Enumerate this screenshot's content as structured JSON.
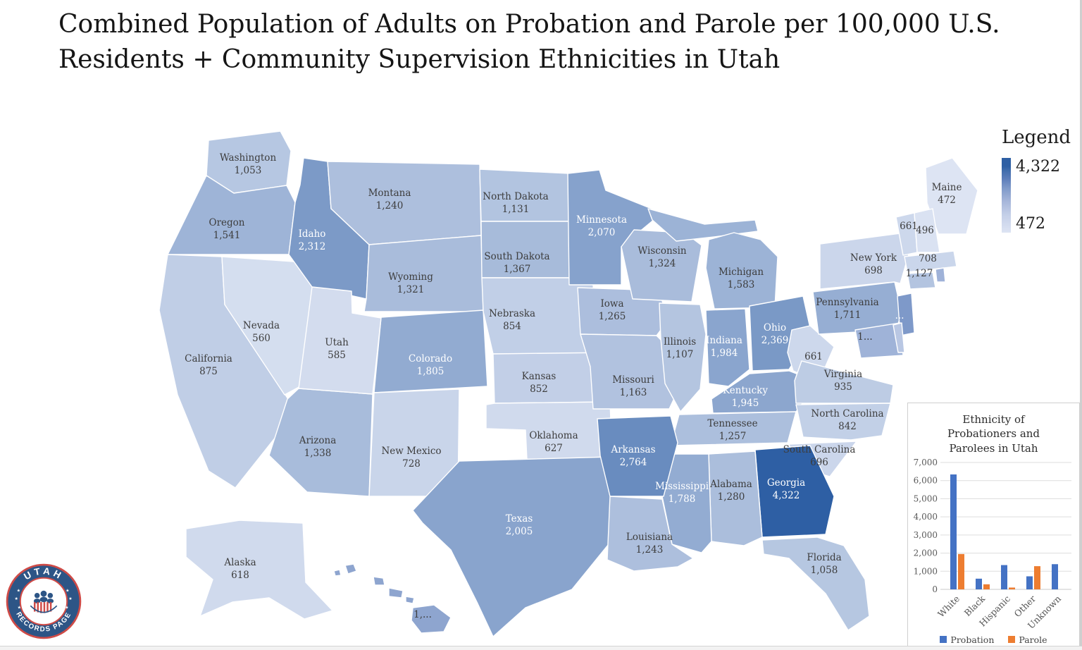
{
  "title": "Combined Population of Adults on Probation and Parole per 100,000 U.S. Residents + Community Supervision Ethnicities in Utah",
  "legend": {
    "title": "Legend",
    "max_label": "4,322",
    "min_label": "472",
    "max_color": "#2e5fa4",
    "mid_color": "#7e99c9",
    "min_color": "#dde4f3"
  },
  "map": {
    "highlight_state": "UT",
    "highlight_color": "#d40000",
    "border_color": "#ffffff",
    "dark_text": "#3d3d3d",
    "light_text": "#ffffff",
    "states": [
      {
        "id": "WA",
        "lines": [
          "Washington",
          "1,053"
        ],
        "value": 1053
      },
      {
        "id": "OR",
        "lines": [
          "Oregon",
          "1,541"
        ],
        "value": 1541
      },
      {
        "id": "CA",
        "lines": [
          "California",
          "875"
        ],
        "value": 875
      },
      {
        "id": "NV",
        "lines": [
          "Nevada",
          "560"
        ],
        "value": 560
      },
      {
        "id": "ID",
        "lines": [
          "Idaho",
          "2,312"
        ],
        "value": 2312
      },
      {
        "id": "MT",
        "lines": [
          "Montana",
          "1,240"
        ],
        "value": 1240
      },
      {
        "id": "WY",
        "lines": [
          "Wyoming",
          "1,321"
        ],
        "value": 1321
      },
      {
        "id": "UT",
        "lines": [
          "Utah",
          "585"
        ],
        "value": 585
      },
      {
        "id": "CO",
        "lines": [
          "Colorado",
          "1,805"
        ],
        "value": 1805
      },
      {
        "id": "AZ",
        "lines": [
          "Arizona",
          "1,338"
        ],
        "value": 1338
      },
      {
        "id": "NM",
        "lines": [
          "New Mexico",
          "728"
        ],
        "value": 728
      },
      {
        "id": "ND",
        "lines": [
          "North Dakota",
          "1,131"
        ],
        "value": 1131
      },
      {
        "id": "SD",
        "lines": [
          "South Dakota",
          "1,367"
        ],
        "value": 1367
      },
      {
        "id": "NE",
        "lines": [
          "Nebraska",
          "854"
        ],
        "value": 854
      },
      {
        "id": "KS",
        "lines": [
          "Kansas",
          "852"
        ],
        "value": 852
      },
      {
        "id": "OK",
        "lines": [
          "Oklahoma",
          "627"
        ],
        "value": 627
      },
      {
        "id": "TX",
        "lines": [
          "Texas",
          "2,005"
        ],
        "value": 2005
      },
      {
        "id": "MN",
        "lines": [
          "Minnesota",
          "2,070"
        ],
        "value": 2070
      },
      {
        "id": "IA",
        "lines": [
          "Iowa",
          "1,265"
        ],
        "value": 1265
      },
      {
        "id": "MO",
        "lines": [
          "Missouri",
          "1,163"
        ],
        "value": 1163
      },
      {
        "id": "AR",
        "lines": [
          "Arkansas",
          "2,764"
        ],
        "value": 2764
      },
      {
        "id": "LA",
        "lines": [
          "Louisiana",
          "1,243"
        ],
        "value": 1243
      },
      {
        "id": "WI",
        "lines": [
          "Wisconsin",
          "1,324"
        ],
        "value": 1324
      },
      {
        "id": "IL",
        "lines": [
          "Illinois",
          "1,107"
        ],
        "value": 1107
      },
      {
        "id": "MI",
        "lines": [
          "Michigan",
          "1,583"
        ],
        "value": 1583
      },
      {
        "id": "IN",
        "lines": [
          "Indiana",
          "1,984"
        ],
        "value": 1984
      },
      {
        "id": "OH",
        "lines": [
          "Ohio",
          "2,369"
        ],
        "value": 2369
      },
      {
        "id": "KY",
        "lines": [
          "Kentucky",
          "1,945"
        ],
        "value": 1945
      },
      {
        "id": "TN",
        "lines": [
          "Tennessee",
          "1,257"
        ],
        "value": 1257
      },
      {
        "id": "MS",
        "lines": [
          "Mississippi",
          "1,788"
        ],
        "value": 1788
      },
      {
        "id": "AL",
        "lines": [
          "Alabama",
          "1,280"
        ],
        "value": 1280
      },
      {
        "id": "GA",
        "lines": [
          "Georgia",
          "4,322"
        ],
        "value": 4322
      },
      {
        "id": "FL",
        "lines": [
          "Florida",
          "1,058"
        ],
        "value": 1058
      },
      {
        "id": "SC",
        "lines": [
          "South Carolina",
          "696"
        ],
        "value": 696
      },
      {
        "id": "NC",
        "lines": [
          "North Carolina",
          "842"
        ],
        "value": 842
      },
      {
        "id": "VA",
        "lines": [
          "Virginia",
          "935"
        ],
        "value": 935
      },
      {
        "id": "WV",
        "lines": [
          "661"
        ],
        "value": 661
      },
      {
        "id": "MD",
        "lines": [
          "1..."
        ],
        "fill": "#9fb3d8"
      },
      {
        "id": "DE",
        "lines": [],
        "fill": "#b9c7e3"
      },
      {
        "id": "PA",
        "lines": [
          "Pennsylvania",
          "1,711"
        ],
        "value": 1711
      },
      {
        "id": "NJ",
        "lines": [
          "..."
        ],
        "fill": "#7e99c9",
        "text": "light"
      },
      {
        "id": "NY",
        "lines": [
          "New York",
          "698"
        ],
        "value": 698
      },
      {
        "id": "CT",
        "lines": [
          "1,127"
        ],
        "value": 1127
      },
      {
        "id": "RI",
        "lines": [],
        "fill": "#9fb2d8"
      },
      {
        "id": "MA",
        "lines": [
          "708"
        ],
        "value": 708
      },
      {
        "id": "VT",
        "lines": [
          "661"
        ],
        "value": 661
      },
      {
        "id": "NH",
        "lines": [
          "496"
        ],
        "value": 496
      },
      {
        "id": "ME",
        "lines": [
          "Maine",
          "472"
        ],
        "value": 472
      },
      {
        "id": "AK",
        "lines": [
          "Alaska",
          "618"
        ],
        "value": 618
      },
      {
        "id": "HI",
        "lines": [
          "1,..."
        ],
        "fill": "#8ea5cf"
      }
    ]
  },
  "chart_data": {
    "type": "bar",
    "title": "Ethnicity of Probationers and Parolees in Utah",
    "categories": [
      "White",
      "Black",
      "Hispanic",
      "Other",
      "Unknown"
    ],
    "series": [
      {
        "name": "Probation",
        "color": "#4472c4",
        "values": [
          6340,
          590,
          1340,
          720,
          1390
        ]
      },
      {
        "name": "Parole",
        "color": "#ed7d31",
        "values": [
          1950,
          280,
          100,
          1280,
          0
        ]
      }
    ],
    "ylim": [
      0,
      7000
    ],
    "ytick_labels": [
      "0",
      "1,000",
      "2,000",
      "3,000",
      "4,000",
      "5,000",
      "6,000",
      "7,000"
    ],
    "grid": true,
    "legend_position": "bottom",
    "xlabel": "",
    "ylabel": ""
  },
  "logo": {
    "top_text": "UTAH",
    "bottom_text": "RECORDS PAGE",
    "ring_color": "#2d5586",
    "accent_color": "#cf4b47"
  }
}
